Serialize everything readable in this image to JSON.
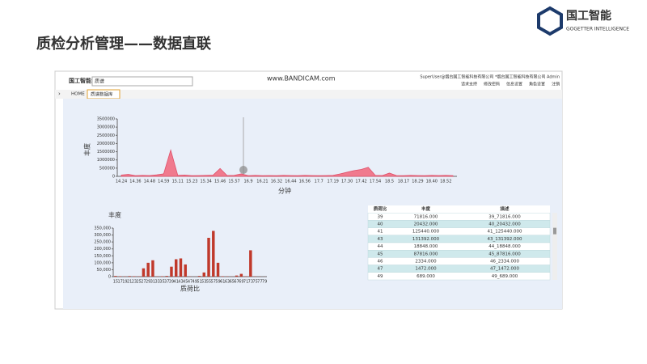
{
  "slide": {
    "title": "质检分析管理——数据直联",
    "logo": "国工智能",
    "logo_sub": "GOGETTER INTELLIGENCE"
  },
  "app": {
    "logo": "国工智能",
    "search": "质谱",
    "watermark": "www.BANDICAM.com",
    "user": "SuperUser@烟台国工智能科技有限公司 *烟台国工智能科技有限公司 Admin",
    "links": [
      "请求支持",
      "修改密码",
      "信息设置",
      "角色设置",
      "注销"
    ],
    "tabs": [
      "HOME",
      "质谱数据库"
    ]
  },
  "chart_data": [
    {
      "type": "area",
      "y_label": "丰度",
      "x_label": "分钟",
      "color": "#f07a8e",
      "line_color": "#e0506a",
      "categories": [
        "14.24",
        null,
        "14.36",
        null,
        "14.48",
        null,
        "14.59",
        null,
        "15.11",
        null,
        "15.23",
        null,
        "15.34",
        null,
        "15.46",
        null,
        "15.57",
        null,
        "16.9",
        null,
        "16.21",
        null,
        "16.32",
        null,
        "16.44",
        null,
        "16.56",
        null,
        "17.7",
        null,
        "17.19",
        null,
        "17.30",
        null,
        "17.42",
        null,
        "17.54",
        null,
        "18.5",
        null,
        "18.17",
        null,
        "18.29",
        null,
        "18.40",
        null,
        "18.52",
        null
      ],
      "values": [
        80000,
        120000,
        40000,
        60000,
        50000,
        90000,
        150000,
        1600000,
        60000,
        80000,
        40000,
        50000,
        60000,
        70000,
        480000,
        50000,
        60000,
        150000,
        40000,
        60000,
        40000,
        50000,
        40000,
        60000,
        50000,
        40000,
        60000,
        50000,
        40000,
        50000,
        60000,
        150000,
        250000,
        350000,
        420000,
        550000,
        60000,
        50000,
        200000,
        50000,
        40000,
        60000,
        50000,
        40000,
        60000,
        50000,
        60000,
        40000
      ],
      "ylim": [
        0,
        3500000
      ],
      "yticks": [
        0,
        500000,
        1000000,
        1500000,
        2000000,
        2500000,
        3000000,
        3500000
      ]
    },
    {
      "type": "bar",
      "y_label": "丰度",
      "x_label": "质荷比",
      "color": "#c0392b",
      "categories": [
        "15",
        "17",
        "19",
        "21",
        "23",
        "25",
        "27",
        "29",
        "31",
        "33",
        "35",
        "37",
        "39",
        "41",
        "43",
        "45",
        "47",
        "49",
        "51",
        "53",
        "55",
        "57",
        "59",
        "61",
        "63",
        "65",
        "67",
        "69",
        "71",
        "73",
        "75",
        "77",
        "79"
      ],
      "values": [
        5000,
        3000,
        2000,
        4000,
        3000,
        2000,
        60000,
        100000,
        118000,
        2000,
        3000,
        5000,
        71816,
        125440,
        131392,
        87816,
        1472,
        689,
        5000,
        30000,
        280000,
        330000,
        100000,
        3000,
        2000,
        1000,
        8000,
        20000,
        3000,
        190000,
        2000,
        1000,
        500
      ],
      "ylim": [
        0,
        350000
      ],
      "yticks": [
        0,
        {
          "value": 50000,
          "label": "50,000"
        },
        {
          "value": 100000,
          "label": "100,000"
        },
        {
          "value": 150000,
          "label": "150,000"
        },
        {
          "value": 200000,
          "label": "200,000"
        },
        {
          "value": 250000,
          "label": "250,000"
        },
        {
          "value": 300000,
          "label": "300,000"
        },
        {
          "value": 350000,
          "label": "350,000"
        }
      ]
    }
  ],
  "table": {
    "headers": [
      "质荷比",
      "丰度",
      "描述"
    ],
    "rows": [
      [
        "39",
        "71816.000",
        "39_71816.000"
      ],
      [
        "40",
        "20432.000",
        "40_20432.000"
      ],
      [
        "41",
        "125440.000",
        "41_125440.000"
      ],
      [
        "43",
        "131392.000",
        "43_131392.000"
      ],
      [
        "44",
        "18848.000",
        "44_18848.000"
      ],
      [
        "45",
        "87816.000",
        "45_87816.000"
      ],
      [
        "46",
        "2334.000",
        "46_2334.000"
      ],
      [
        "47",
        "1472.000",
        "47_1472.000"
      ],
      [
        "49",
        "689.000",
        "49_689.000"
      ]
    ]
  }
}
